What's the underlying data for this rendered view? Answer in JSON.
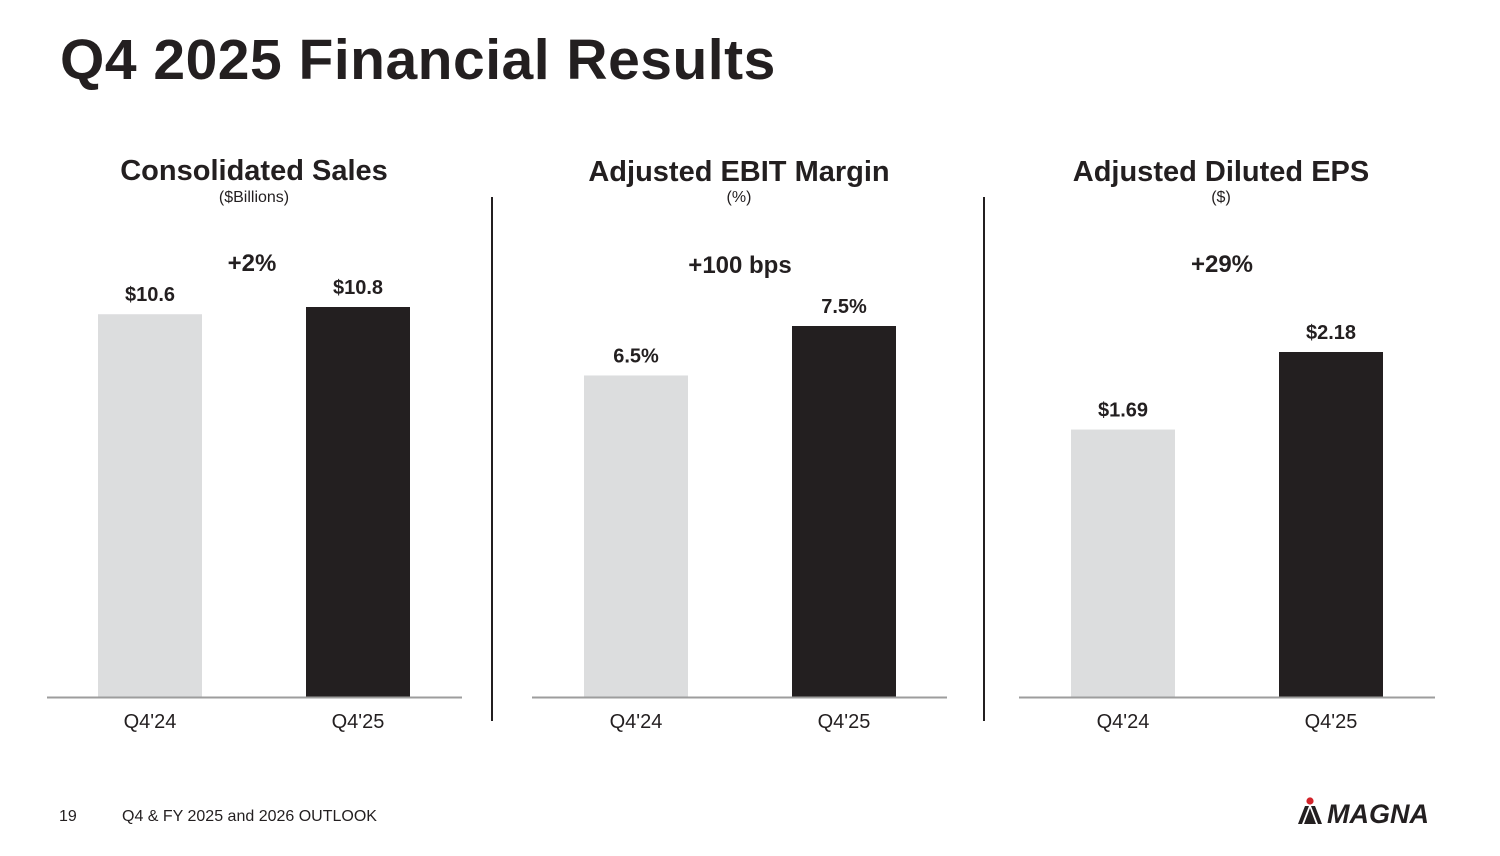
{
  "page": {
    "title": "Q4 2025 Financial Results",
    "footer_page": "19",
    "footer_text": "Q4 & FY 2025 and 2026 OUTLOOK",
    "logo_text": "MAGNA"
  },
  "colors": {
    "prior": "#dcddde",
    "current": "#231f20",
    "axis": "#9d9d9d",
    "text": "#231f20"
  },
  "chart_data": [
    {
      "type": "bar",
      "title": "Consolidated Sales",
      "unit": "($Billions)",
      "change": "+2%",
      "categories": [
        "Q4'24",
        "Q4'25"
      ],
      "values": [
        10.6,
        10.8
      ],
      "labels": [
        "$10.6",
        "$10.8"
      ],
      "ylim": [
        0,
        10.8
      ]
    },
    {
      "type": "bar",
      "title": "Adjusted EBIT Margin",
      "unit": "(%)",
      "change": "+100 bps",
      "categories": [
        "Q4'24",
        "Q4'25"
      ],
      "values": [
        6.5,
        7.5
      ],
      "labels": [
        "6.5%",
        "7.5%"
      ],
      "ylim": [
        0,
        7.5
      ]
    },
    {
      "type": "bar",
      "title": "Adjusted Diluted EPS",
      "unit": "($)",
      "change": "+29%",
      "categories": [
        "Q4'24",
        "Q4'25"
      ],
      "values": [
        1.69,
        2.18
      ],
      "labels": [
        "$1.69",
        "$2.18"
      ],
      "ylim": [
        0,
        2.18
      ]
    }
  ]
}
